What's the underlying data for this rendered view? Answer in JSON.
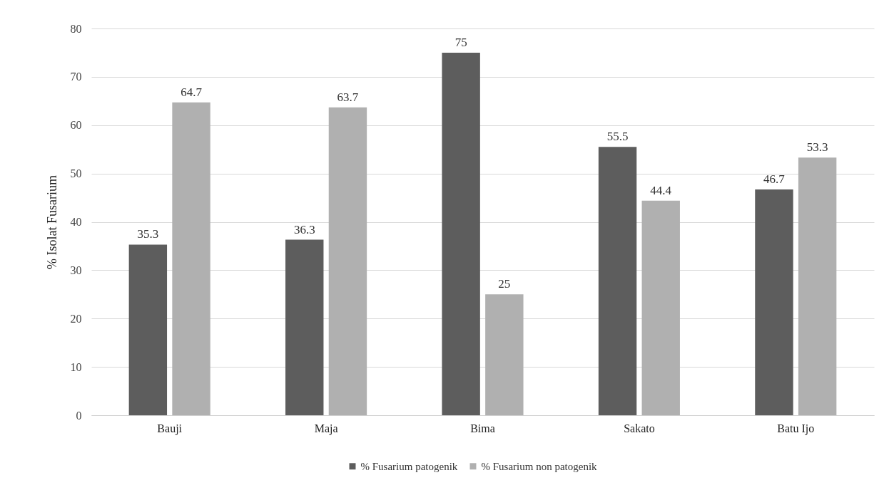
{
  "chart_data": {
    "type": "bar",
    "ylabel": "% Isolat Fusarium",
    "categories": [
      "Bauji",
      "Maja",
      "Bima",
      "Sakato",
      "Batu Ijo"
    ],
    "series": [
      {
        "name": "% Fusarium patogenik",
        "color": "#5d5d5d",
        "values": [
          35.3,
          36.3,
          75,
          55.5,
          46.7
        ]
      },
      {
        "name": "% Fusarium non patogenik",
        "color": "#b0b0b0",
        "values": [
          64.7,
          63.7,
          25,
          44.4,
          53.3
        ]
      }
    ],
    "ylim": [
      0,
      80
    ],
    "yticks": [
      0,
      10,
      20,
      30,
      40,
      50,
      60,
      70,
      80
    ],
    "grid": "y",
    "legend": "bottom",
    "data_labels": true
  }
}
